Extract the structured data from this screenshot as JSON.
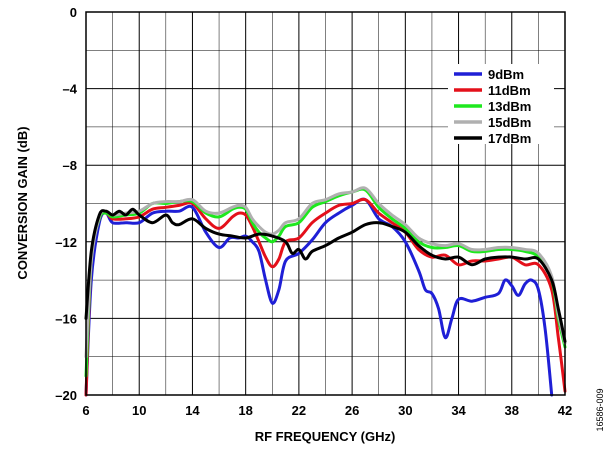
{
  "chart_data": {
    "type": "line",
    "title": "",
    "xlabel": "RF FREQUENCY (GHz)",
    "ylabel": "CONVERSION GAIN (dB)",
    "xlim": [
      6,
      42
    ],
    "ylim": [
      -20,
      0
    ],
    "x_ticks": [
      6,
      10,
      14,
      18,
      22,
      26,
      30,
      34,
      38,
      42
    ],
    "x_tick_labels": [
      "6",
      "10",
      "14",
      "18",
      "22",
      "26",
      "30",
      "34",
      "38",
      "42"
    ],
    "y_ticks": [
      0,
      -4,
      -8,
      -12,
      -16,
      -20
    ],
    "y_tick_labels": [
      "0",
      "–4",
      "–8",
      "–12",
      "–16",
      "–20"
    ],
    "x_minor_gridlines": [
      8,
      12,
      16,
      20,
      24,
      28,
      32,
      36,
      40
    ],
    "y_minor_gridlines": [
      -2,
      -6,
      -10,
      -14,
      -18
    ],
    "grid": true,
    "legend_position": "top-right",
    "figure_id": "16586-009",
    "series": [
      {
        "name": "9dBm",
        "color": "#1f1fd6",
        "x": [
          6.0,
          6.4,
          7.0,
          7.5,
          8.0,
          9.0,
          10.0,
          11.0,
          12.0,
          13.0,
          14.0,
          15.0,
          16.0,
          16.8,
          17.5,
          18.0,
          18.5,
          19.0,
          19.5,
          20.0,
          20.5,
          21.0,
          22.0,
          23.0,
          24.0,
          25.0,
          26.0,
          27.0,
          28.0,
          29.0,
          30.0,
          31.0,
          31.5,
          32.0,
          32.5,
          33.0,
          33.5,
          34.0,
          35.0,
          36.0,
          37.0,
          37.5,
          38.0,
          38.5,
          39.0,
          39.5,
          40.0,
          40.5,
          41.0
        ],
        "values": [
          -20.0,
          -14.0,
          -11.0,
          -10.5,
          -11.0,
          -11.0,
          -11.0,
          -10.5,
          -10.4,
          -10.4,
          -10.2,
          -11.5,
          -12.3,
          -11.8,
          -11.8,
          -11.7,
          -12.0,
          -12.5,
          -14.0,
          -15.2,
          -14.5,
          -13.0,
          -12.6,
          -11.9,
          -11.0,
          -10.5,
          -10.1,
          -9.8,
          -10.8,
          -11.2,
          -12.0,
          -13.5,
          -14.5,
          -14.7,
          -15.5,
          -17.0,
          -16.0,
          -15.0,
          -15.1,
          -14.9,
          -14.7,
          -14.0,
          -14.3,
          -14.8,
          -14.2,
          -14.0,
          -14.5,
          -16.5,
          -20.0
        ]
      },
      {
        "name": "11dBm",
        "color": "#e4101a",
        "x": [
          6.0,
          6.4,
          7.0,
          7.5,
          8.0,
          9.0,
          10.0,
          11.0,
          12.0,
          13.0,
          14.0,
          15.0,
          16.0,
          17.0,
          17.5,
          18.0,
          18.5,
          19.0,
          19.5,
          20.0,
          20.5,
          21.0,
          22.0,
          23.0,
          24.0,
          25.0,
          26.0,
          27.0,
          28.0,
          29.0,
          30.0,
          31.0,
          32.0,
          33.0,
          34.0,
          35.0,
          36.0,
          37.0,
          38.0,
          39.0,
          40.0,
          41.0,
          41.5,
          42.0
        ],
        "values": [
          -20.0,
          -13.0,
          -10.8,
          -10.5,
          -10.8,
          -10.8,
          -10.7,
          -10.3,
          -10.2,
          -10.1,
          -10.0,
          -10.8,
          -11.3,
          -10.7,
          -10.5,
          -10.6,
          -11.2,
          -12.0,
          -12.8,
          -13.3,
          -12.9,
          -12.0,
          -11.8,
          -11.0,
          -10.5,
          -10.1,
          -10.0,
          -9.8,
          -10.5,
          -11.0,
          -11.5,
          -12.4,
          -12.8,
          -12.7,
          -13.2,
          -13.0,
          -13.0,
          -12.9,
          -12.8,
          -13.2,
          -13.2,
          -14.5,
          -17.0,
          -19.8
        ]
      },
      {
        "name": "13dBm",
        "color": "#1ee81e",
        "x": [
          6.0,
          6.4,
          7.0,
          7.5,
          8.0,
          9.0,
          10.0,
          11.0,
          12.0,
          13.0,
          14.0,
          15.0,
          16.0,
          17.0,
          17.5,
          18.0,
          18.5,
          19.0,
          19.5,
          20.0,
          20.5,
          21.0,
          22.0,
          23.0,
          24.0,
          25.0,
          26.0,
          27.0,
          28.0,
          29.0,
          30.0,
          31.0,
          32.0,
          33.0,
          34.0,
          35.0,
          36.0,
          37.0,
          38.0,
          39.0,
          40.0,
          41.0,
          41.5,
          42.0
        ],
        "values": [
          -19.0,
          -13.0,
          -10.8,
          -10.5,
          -10.7,
          -10.6,
          -10.5,
          -10.0,
          -10.0,
          -9.9,
          -9.9,
          -10.5,
          -10.7,
          -10.3,
          -10.2,
          -10.3,
          -11.0,
          -11.5,
          -11.8,
          -12.0,
          -11.7,
          -11.2,
          -11.0,
          -10.2,
          -9.9,
          -9.6,
          -9.4,
          -9.3,
          -10.2,
          -10.8,
          -11.3,
          -12.0,
          -12.3,
          -12.3,
          -12.2,
          -12.5,
          -12.5,
          -12.4,
          -12.4,
          -12.5,
          -12.8,
          -14.0,
          -16.0,
          -17.5
        ]
      },
      {
        "name": "15dBm",
        "color": "#b0b0b0",
        "x": [
          6.0,
          6.4,
          7.0,
          7.5,
          8.0,
          9.0,
          10.0,
          11.0,
          12.0,
          13.0,
          14.0,
          15.0,
          16.0,
          17.0,
          17.5,
          18.0,
          18.5,
          19.0,
          19.5,
          20.0,
          20.5,
          21.0,
          22.0,
          23.0,
          24.0,
          25.0,
          26.0,
          27.0,
          28.0,
          29.0,
          30.0,
          31.0,
          32.0,
          33.0,
          34.0,
          35.0,
          36.0,
          37.0,
          38.0,
          39.0,
          40.0,
          41.0,
          41.5,
          42.0
        ],
        "values": [
          -18.0,
          -13.0,
          -10.7,
          -10.4,
          -10.6,
          -10.5,
          -10.4,
          -10.0,
          -9.9,
          -9.9,
          -9.8,
          -10.4,
          -10.5,
          -10.2,
          -10.1,
          -10.2,
          -10.8,
          -11.2,
          -11.5,
          -11.6,
          -11.4,
          -11.0,
          -10.8,
          -10.0,
          -9.8,
          -9.5,
          -9.4,
          -9.2,
          -10.0,
          -10.6,
          -11.1,
          -11.8,
          -12.1,
          -12.2,
          -12.1,
          -12.4,
          -12.4,
          -12.3,
          -12.3,
          -12.4,
          -12.6,
          -13.8,
          -15.8,
          -17.3
        ]
      },
      {
        "name": "17dBm",
        "color": "#000000",
        "x": [
          6.0,
          6.4,
          7.0,
          7.5,
          8.0,
          8.5,
          9.0,
          9.5,
          10.0,
          11.0,
          12.0,
          12.5,
          13.0,
          14.0,
          15.0,
          16.0,
          17.0,
          18.0,
          19.0,
          20.0,
          21.0,
          21.5,
          22.0,
          22.5,
          23.0,
          24.0,
          25.0,
          26.0,
          27.0,
          28.0,
          29.0,
          30.0,
          31.0,
          32.0,
          33.0,
          34.0,
          35.0,
          36.0,
          37.0,
          38.0,
          39.0,
          40.0,
          41.0,
          41.5,
          42.0
        ],
        "values": [
          -16.0,
          -12.5,
          -10.6,
          -10.4,
          -10.6,
          -10.4,
          -10.6,
          -10.3,
          -10.6,
          -11.0,
          -10.6,
          -11.0,
          -11.1,
          -10.8,
          -11.3,
          -11.6,
          -11.7,
          -11.8,
          -11.6,
          -11.7,
          -12.0,
          -12.6,
          -12.4,
          -12.9,
          -12.5,
          -12.2,
          -11.8,
          -11.5,
          -11.1,
          -11.0,
          -11.2,
          -11.5,
          -12.2,
          -12.7,
          -12.9,
          -12.8,
          -13.2,
          -12.9,
          -12.8,
          -12.8,
          -12.9,
          -12.9,
          -14.0,
          -15.5,
          -17.2
        ]
      }
    ]
  }
}
